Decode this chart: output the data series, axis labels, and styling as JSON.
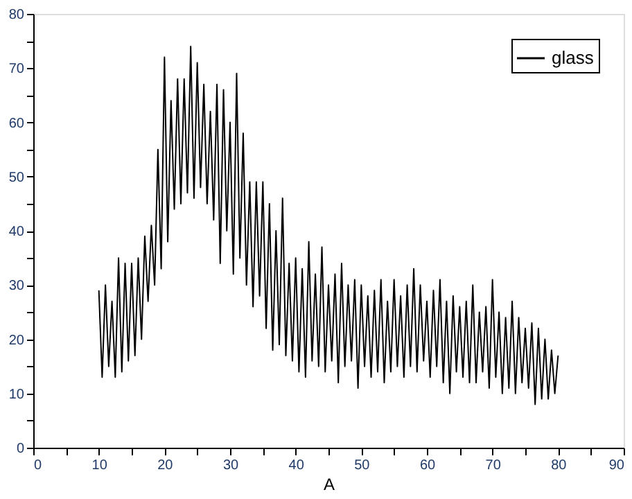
{
  "chart_data": {
    "type": "line",
    "xlabel": "A",
    "legend": "top right",
    "grid": false,
    "marker": "none",
    "line_style": "solid",
    "xlim": [
      0,
      90
    ],
    "ylim": [
      0,
      80
    ],
    "xticks": [
      0,
      {
        "value": 5,
        "label": null
      },
      10,
      {
        "value": 15,
        "label": null
      },
      20,
      {
        "value": 25,
        "label": null
      },
      30,
      {
        "value": 35,
        "label": null
      },
      40,
      {
        "value": 45,
        "label": null
      },
      50,
      {
        "value": 55,
        "label": null
      },
      60,
      {
        "value": 65,
        "label": null
      },
      70,
      {
        "value": 75,
        "label": null
      },
      80,
      {
        "value": 85,
        "label": null
      },
      90
    ],
    "yticks": [
      0,
      {
        "value": 5,
        "label": null
      },
      10,
      {
        "value": 15,
        "label": null
      },
      20,
      {
        "value": 25,
        "label": null
      },
      30,
      {
        "value": 35,
        "label": null
      },
      40,
      {
        "value": 45,
        "label": null
      },
      50,
      {
        "value": 55,
        "label": null
      },
      60,
      {
        "value": 65,
        "label": null
      },
      70,
      {
        "value": 75,
        "label": null
      },
      80
    ],
    "x": [
      10,
      10.5,
      11,
      11.5,
      12,
      12.5,
      13,
      13.5,
      14,
      14.5,
      15,
      15.5,
      16,
      16.5,
      17,
      17.5,
      18,
      18.5,
      19,
      19.5,
      20,
      20.5,
      21,
      21.5,
      22,
      22.5,
      23,
      23.5,
      24,
      24.5,
      25,
      25.5,
      26,
      26.5,
      27,
      27.5,
      28,
      28.5,
      29,
      29.5,
      30,
      30.5,
      31,
      31.5,
      32,
      32.5,
      33,
      33.5,
      34,
      34.5,
      35,
      35.5,
      36,
      36.5,
      37,
      37.5,
      38,
      38.5,
      39,
      39.5,
      40,
      40.5,
      41,
      41.5,
      42,
      42.5,
      43,
      43.5,
      44,
      44.5,
      45,
      45.5,
      46,
      46.5,
      47,
      47.5,
      48,
      48.5,
      49,
      49.5,
      50,
      50.5,
      51,
      51.5,
      52,
      52.5,
      53,
      53.5,
      54,
      54.5,
      55,
      55.5,
      56,
      56.5,
      57,
      57.5,
      58,
      58.5,
      59,
      59.5,
      60,
      60.5,
      61,
      61.5,
      62,
      62.5,
      63,
      63.5,
      64,
      64.5,
      65,
      65.5,
      66,
      66.5,
      67,
      67.5,
      68,
      68.5,
      69,
      69.5,
      70,
      70.5,
      71,
      71.5,
      72,
      72.5,
      73,
      73.5,
      74,
      74.5,
      75,
      75.5,
      76,
      76.5,
      77,
      77.5,
      78,
      78.5,
      79,
      79.5,
      80
    ],
    "series": [
      {
        "name": "glass",
        "color": "#000000",
        "values": [
          29,
          13,
          30,
          15,
          27,
          13,
          35,
          14,
          34,
          16,
          34,
          17,
          35,
          20,
          39,
          27,
          41,
          30,
          55,
          33,
          72,
          38,
          64,
          44,
          68,
          45,
          68,
          47,
          74,
          46,
          71,
          48,
          67,
          45,
          62,
          42,
          67,
          34,
          66,
          40,
          60,
          32,
          69,
          35,
          58,
          30,
          49,
          26,
          49,
          28,
          49,
          22,
          45,
          18,
          40,
          19,
          46,
          17,
          34,
          16,
          35,
          14,
          33,
          13,
          38,
          16,
          32,
          15,
          37,
          14,
          30,
          16,
          32,
          12,
          34,
          15,
          30,
          16,
          31,
          11,
          30,
          15,
          28,
          13,
          29,
          14,
          31,
          12,
          27,
          14,
          31,
          15,
          28,
          13,
          30,
          15,
          33,
          14,
          30,
          16,
          27,
          13,
          29,
          15,
          31,
          12,
          27,
          10,
          28,
          14,
          26,
          13,
          27,
          12,
          30,
          12,
          25,
          14,
          26,
          11,
          31,
          13,
          25,
          10,
          24,
          11,
          27,
          10,
          24,
          12,
          22,
          11,
          23,
          8,
          22,
          9,
          20,
          9,
          18,
          10,
          17
        ]
      }
    ]
  }
}
